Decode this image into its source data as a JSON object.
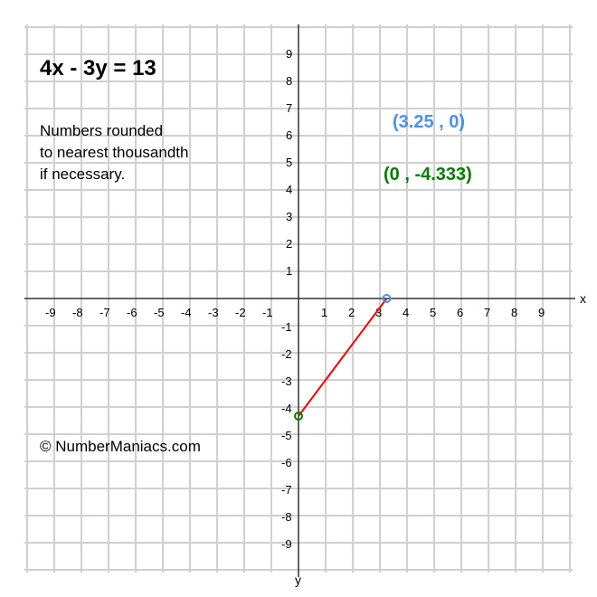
{
  "title": "4x - 3y = 13",
  "note_lines": [
    "Numbers rounded",
    "to nearest thousandth",
    "if necessary."
  ],
  "copyright": "© NumberManiacs.com",
  "chart_data": {
    "type": "line",
    "equation": "4x - 3y = 13",
    "xlabel": "x",
    "ylabel": "y",
    "xlim": [
      -10,
      10
    ],
    "ylim": [
      -10,
      10
    ],
    "grid": true,
    "x_ticks": [
      -9,
      -8,
      -7,
      -6,
      -5,
      -4,
      -3,
      -2,
      -1,
      1,
      2,
      3,
      4,
      5,
      6,
      7,
      8,
      9
    ],
    "y_ticks": [
      9,
      8,
      7,
      6,
      5,
      4,
      3,
      2,
      1,
      -1,
      -2,
      -3,
      -4,
      -5,
      -6,
      -7,
      -8,
      -9
    ],
    "segment": {
      "from": [
        0,
        -4.333
      ],
      "to": [
        3.25,
        0
      ],
      "color": "#ff0000"
    },
    "points": [
      {
        "x": 3.25,
        "y": 0,
        "label": "(3.25 , 0)",
        "color": "#4a90f0"
      },
      {
        "x": 0,
        "y": -4.333,
        "label": "(0 , -4.333)",
        "color": "#008000"
      }
    ]
  }
}
